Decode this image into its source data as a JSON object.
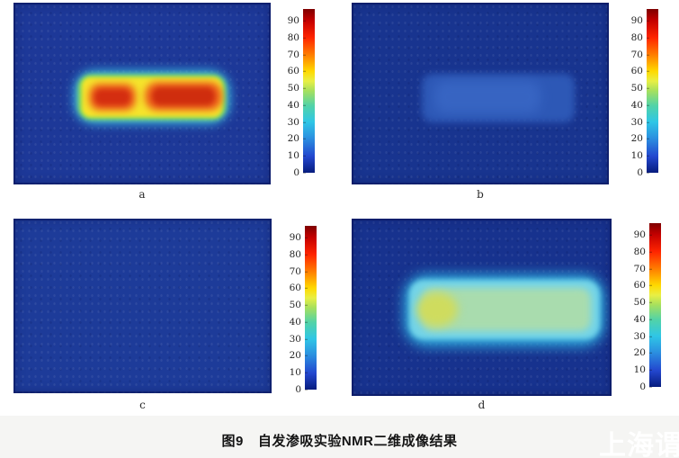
{
  "figure": {
    "caption_label": "图9",
    "caption_text": "自发渗吸实验NMR二维成像结果",
    "watermark": "上海谓载"
  },
  "colorbar": {
    "ticks": [
      "90",
      "80",
      "70",
      "60",
      "50",
      "40",
      "30",
      "20",
      "10",
      "0"
    ],
    "colormap": "jet",
    "range_min": 0,
    "range_max": 97
  },
  "panels": [
    {
      "label": "a"
    },
    {
      "label": "b"
    },
    {
      "label": "c"
    },
    {
      "label": "d"
    }
  ],
  "chart_data": [
    {
      "type": "heatmap",
      "panel": "a",
      "colormap": "jet",
      "colorbar_ticks": [
        0,
        10,
        20,
        30,
        40,
        50,
        60,
        70,
        80,
        90
      ],
      "colorbar_range": [
        0,
        97
      ],
      "background_value": 2,
      "regions": [
        {
          "name": "core-plug-body",
          "shape": "horizontal-rod",
          "value_range": [
            55,
            70
          ],
          "color": "yellow"
        },
        {
          "name": "left-high-signal-zone",
          "value_range": [
            75,
            90
          ],
          "color": "red-orange"
        },
        {
          "name": "right-high-signal-zone",
          "value_range": [
            78,
            92
          ],
          "color": "red"
        },
        {
          "name": "rod-edge",
          "value_range": [
            25,
            40
          ],
          "color": "cyan-green"
        }
      ]
    },
    {
      "type": "heatmap",
      "panel": "b",
      "colormap": "jet",
      "colorbar_ticks": [
        0,
        10,
        20,
        30,
        40,
        50,
        60,
        70,
        80,
        90
      ],
      "colorbar_range": [
        0,
        97
      ],
      "background_value": 2,
      "regions": [
        {
          "name": "core-plug-body",
          "shape": "horizontal-rod",
          "value_range": [
            10,
            18
          ],
          "color": "light-blue"
        }
      ]
    },
    {
      "type": "heatmap",
      "panel": "c",
      "colormap": "jet",
      "colorbar_ticks": [
        0,
        10,
        20,
        30,
        40,
        50,
        60,
        70,
        80,
        90
      ],
      "colorbar_range": [
        0,
        97
      ],
      "background_value": 3,
      "regions": [
        {
          "name": "uniform-noise-field",
          "value_range": [
            0,
            8
          ],
          "color": "dark-blue"
        }
      ]
    },
    {
      "type": "heatmap",
      "panel": "d",
      "colormap": "jet",
      "colorbar_ticks": [
        0,
        10,
        20,
        30,
        40,
        50,
        60,
        70,
        80,
        90
      ],
      "colorbar_range": [
        0,
        97
      ],
      "background_value": 2,
      "regions": [
        {
          "name": "core-plug-body",
          "shape": "horizontal-rod",
          "value_range": [
            38,
            48
          ],
          "color": "pale-green"
        },
        {
          "name": "rod-edge",
          "value_range": [
            25,
            35
          ],
          "color": "light-cyan"
        },
        {
          "name": "left-hotspot",
          "value_range": [
            50,
            58
          ],
          "color": "yellow-green"
        }
      ]
    }
  ]
}
